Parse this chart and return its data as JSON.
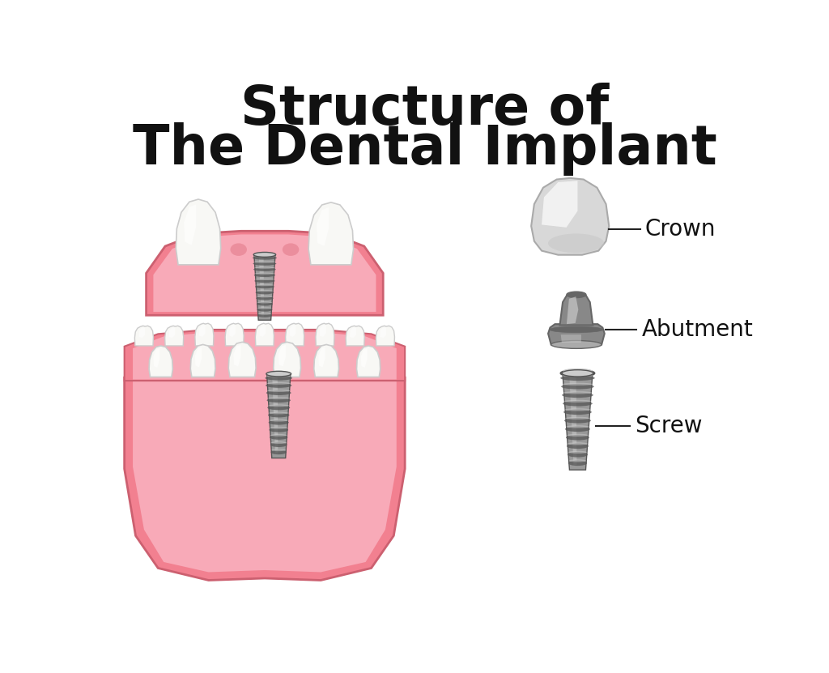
{
  "title_line1": "Structure of",
  "title_line2": "The Dental Implant",
  "title_fontsize": 48,
  "bg_color": "#ffffff",
  "gum_color": "#f28090",
  "gum_light": "#f8aab8",
  "gum_lighter": "#fcc0cc",
  "gum_dark": "#d05060",
  "gum_outline": "#cc6070",
  "tooth_white": "#f8f8f5",
  "tooth_off": "#eeeee8",
  "tooth_shadow": "#cccccc",
  "tooth_highlight": "#ffffff",
  "implant_gray": "#999999",
  "implant_light": "#cccccc",
  "implant_lighter": "#e0e0e0",
  "implant_dark": "#555555",
  "implant_mid": "#888888",
  "crown_main": "#d8d8d8",
  "crown_light": "#f0f0f0",
  "crown_white": "#fafafa",
  "abut_dark": "#666666",
  "abut_mid": "#888888",
  "abut_light": "#aaaaaa",
  "abut_lighter": "#cccccc",
  "label_crown": "Crown",
  "label_abutment": "Abutment",
  "label_screw": "Screw",
  "label_fontsize": 20,
  "line_color": "#222222",
  "text_color": "#111111"
}
